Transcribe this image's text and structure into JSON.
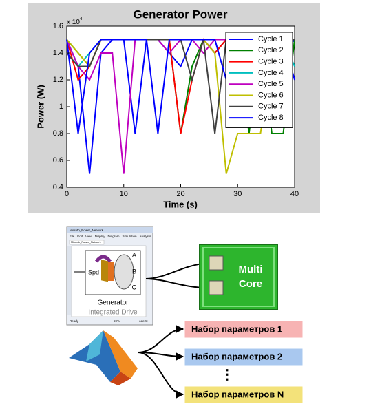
{
  "chart_data": {
    "type": "line",
    "title": "Generator Power",
    "xlabel": "Time (s)",
    "ylabel": "Power (W)",
    "y_multiplier": {
      "base": "x 10",
      "exponent": "4"
    },
    "x": [
      0,
      2,
      4,
      6,
      8,
      10,
      12,
      14,
      16,
      18,
      20,
      22,
      24,
      26,
      28,
      30,
      32,
      34,
      36,
      38,
      40
    ],
    "series": [
      {
        "name": "Cycle 1",
        "color": "#0000ff",
        "values": [
          1.5,
          1.3,
          0.5,
          1.4,
          1.5,
          1.5,
          0.8,
          1.5,
          1.5,
          1.4,
          1.3,
          1.5,
          1.5,
          1.4,
          1.5,
          1.5,
          1.5,
          1.5,
          1.5,
          1.4,
          1.5
        ]
      },
      {
        "name": "Cycle 2",
        "color": "#008000",
        "values": [
          1.5,
          1.4,
          1.3,
          1.5,
          1.5,
          1.5,
          1.5,
          1.5,
          1.5,
          1.5,
          0.8,
          1.3,
          1.5,
          1.4,
          1.5,
          1.5,
          0.8,
          1.5,
          0.8,
          0.8,
          1.5
        ]
      },
      {
        "name": "Cycle 3",
        "color": "#ff0000",
        "values": [
          1.5,
          1.2,
          1.3,
          1.5,
          1.5,
          1.5,
          1.5,
          1.5,
          1.5,
          1.5,
          0.8,
          1.2,
          1.5,
          1.4,
          1.5,
          1.5,
          1.5,
          1.5,
          1.2,
          1.5,
          1.5
        ]
      },
      {
        "name": "Cycle 4",
        "color": "#00bfbf",
        "values": [
          1.5,
          1.3,
          1.4,
          1.5,
          1.5,
          1.5,
          1.5,
          1.5,
          1.5,
          1.5,
          1.5,
          1.5,
          1.5,
          1.5,
          1.5,
          1.5,
          1.5,
          1.5,
          1.5,
          1.5,
          1.3
        ]
      },
      {
        "name": "Cycle 5",
        "color": "#bf00bf",
        "values": [
          1.5,
          1.3,
          1.2,
          1.4,
          1.4,
          0.5,
          1.5,
          1.5,
          1.5,
          1.4,
          1.5,
          1.5,
          1.4,
          1.5,
          1.5,
          1.5,
          1.5,
          1.5,
          1.5,
          1.5,
          1.5
        ]
      },
      {
        "name": "Cycle 6",
        "color": "#bfbf00",
        "values": [
          1.5,
          1.4,
          1.3,
          1.5,
          1.5,
          1.5,
          1.5,
          1.5,
          1.5,
          1.5,
          1.5,
          1.5,
          1.5,
          1.4,
          0.5,
          0.8,
          0.8,
          0.8,
          1.3,
          1.5,
          1.5
        ]
      },
      {
        "name": "Cycle 7",
        "color": "#404040",
        "values": [
          1.4,
          1.3,
          1.3,
          1.5,
          1.5,
          1.5,
          1.5,
          1.5,
          1.5,
          1.5,
          1.5,
          1.2,
          1.5,
          0.8,
          1.5,
          1.5,
          1.5,
          1.5,
          1.5,
          1.5,
          1.5
        ]
      },
      {
        "name": "Cycle 8",
        "color": "#0000ff",
        "values": [
          1.5,
          0.8,
          1.4,
          1.5,
          1.5,
          1.5,
          1.5,
          1.5,
          0.8,
          1.5,
          1.5,
          1.5,
          1.5,
          1.5,
          1.2,
          1.5,
          1.5,
          1.5,
          1.5,
          1.5,
          1.2
        ]
      }
    ],
    "xlim": [
      0,
      40
    ],
    "xticks": [
      0,
      10,
      20,
      30,
      40
    ],
    "ylim": [
      0.4,
      1.6
    ],
    "yticks": [
      0.4,
      0.6,
      0.8,
      1,
      1.2,
      1.4,
      1.6
    ],
    "legend": "upper right"
  },
  "diagram": {
    "window": {
      "title": "Microfb_Power_Network",
      "menu": [
        "File",
        "Edit",
        "View",
        "Display",
        "Diagram",
        "Simulation",
        "Analysis"
      ],
      "tab": "Microfb_Power_Network",
      "status": [
        "Ready",
        "59%",
        "ode23"
      ]
    },
    "block": {
      "title": "Generator",
      "subtitle": "Integrated Drive",
      "input": "Spd",
      "outputs": [
        "A",
        "B",
        "C"
      ]
    },
    "multicore": [
      "Multi",
      "Core"
    ],
    "parameter_sets": [
      {
        "label": "Набор параметров 1",
        "color": "#f7b3b3"
      },
      {
        "label": "Набор параметров 2",
        "color": "#a9c8ef"
      },
      {
        "label": "Набор параметров N",
        "color": "#f3e27a"
      }
    ],
    "ellipsis": "⋮"
  }
}
